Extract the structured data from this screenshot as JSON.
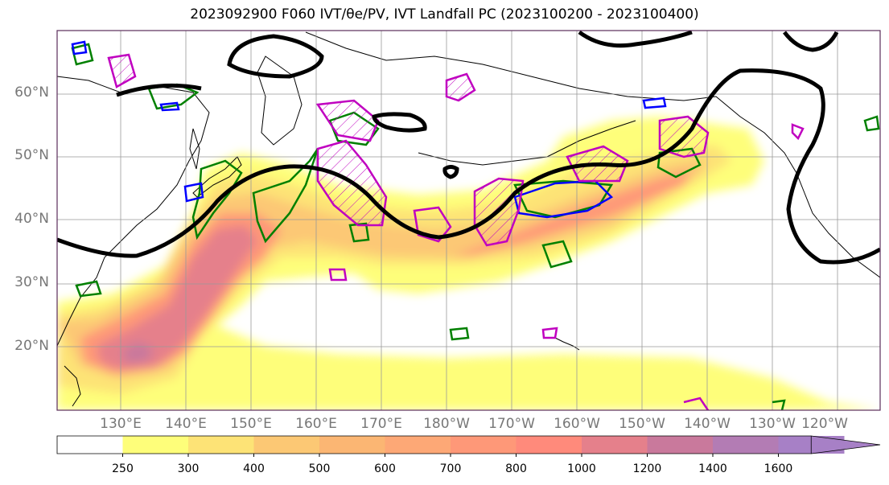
{
  "title": "2023092900 F060 IVT/θe/PV, IVT Landfall PC (2023100200 - 2023100400)",
  "lat_labels": [
    "60°N",
    "50°N",
    "40°N",
    "30°N",
    "20°N"
  ],
  "lon_labels": [
    "130°E",
    "140°E",
    "150°E",
    "160°E",
    "170°E",
    "180°W",
    "170°W",
    "160°W",
    "150°W",
    "140°W",
    "130°W",
    "120°W"
  ],
  "colorbar": {
    "levels": [
      "250",
      "300",
      "400",
      "500",
      "600",
      "700",
      "800",
      "1000",
      "1200",
      "1400",
      "1600"
    ],
    "colors": [
      "#ffffff",
      "#fefe7a",
      "#fde376",
      "#fcc874",
      "#fbb673",
      "#fda876",
      "#fe9878",
      "#ff8a7b",
      "#e5808b",
      "#c9799c",
      "#b37cb4",
      "#a780c6"
    ]
  },
  "contour_colors": {
    "geopotential": "#000000",
    "theta_e": "#008000",
    "pv_blue": "#0000ff",
    "pv_magenta": "#c000c0"
  }
}
